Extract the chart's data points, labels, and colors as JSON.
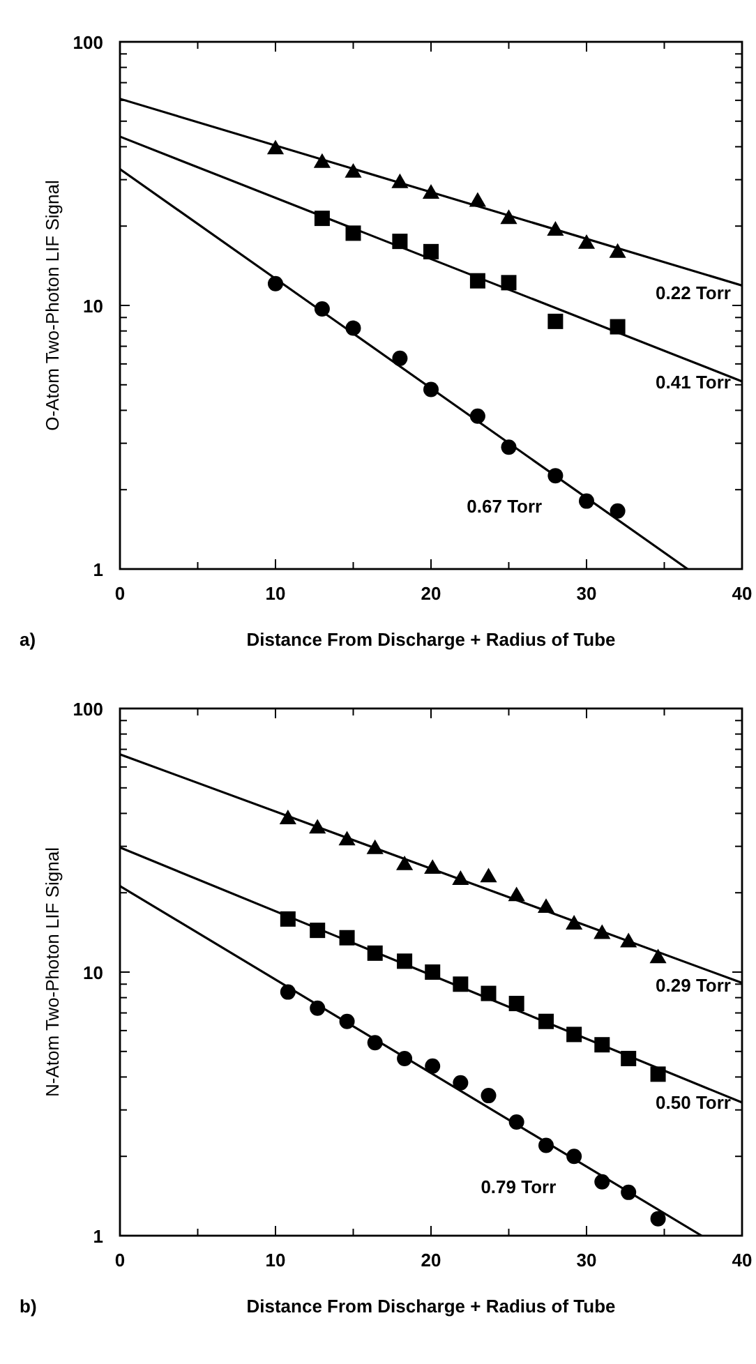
{
  "chart_data": [
    {
      "type": "scatter",
      "xlabel": "Distance From Discharge + Radius of Tube",
      "ylabel": "O-Atom Two-Photon LIF Signal",
      "log": "y",
      "xlim": [
        0,
        40
      ],
      "ylim": [
        1,
        100
      ],
      "xticks": [
        0,
        {
          "value": 5,
          "label": null
        },
        10,
        {
          "value": 15,
          "label": null
        },
        20,
        {
          "value": 25,
          "label": null
        },
        30,
        {
          "value": 35,
          "label": null
        },
        40
      ],
      "yticks": [
        1,
        {
          "value": 2,
          "label": null
        },
        {
          "value": 3,
          "label": null
        },
        {
          "value": 4,
          "label": null
        },
        {
          "value": 5,
          "label": null
        },
        {
          "value": 6,
          "label": null
        },
        {
          "value": 7,
          "label": null
        },
        {
          "value": 8,
          "label": null
        },
        {
          "value": 9,
          "label": null
        },
        10,
        {
          "value": 20,
          "label": null
        },
        {
          "value": 30,
          "label": null
        },
        {
          "value": 40,
          "label": null
        },
        {
          "value": 50,
          "label": null
        },
        {
          "value": 60,
          "label": null
        },
        {
          "value": 70,
          "label": null
        },
        {
          "value": 80,
          "label": null
        },
        {
          "value": 90,
          "label": null
        },
        100
      ],
      "grid": false,
      "legend": "right",
      "series": [
        {
          "marker": "triangle",
          "color": "#000000",
          "x": [
            10,
            13,
            15,
            18,
            20,
            23,
            25,
            28,
            30,
            32
          ],
          "values": [
            39.5,
            35.1,
            32.2,
            29.4,
            26.8,
            25.0,
            21.5,
            19.4,
            17.3,
            16.0
          ]
        },
        {
          "marker": "square",
          "color": "#000000",
          "x": [
            13,
            15,
            18,
            20,
            23,
            25,
            28,
            32
          ],
          "values": [
            21.4,
            18.8,
            17.5,
            16.0,
            12.4,
            12.2,
            8.7,
            8.3
          ]
        },
        {
          "marker": "circle",
          "color": "#000000",
          "x": [
            10,
            13,
            15,
            18,
            20,
            23,
            25,
            28,
            30,
            32
          ],
          "values": [
            12.1,
            9.7,
            8.2,
            6.3,
            4.8,
            3.8,
            2.9,
            2.26,
            1.81,
            1.66
          ]
        },
        {
          "type": "line",
          "name": "0.22 Torr",
          "color": "#000000",
          "line_style": "solid",
          "x": [
            0,
            40
          ],
          "values": [
            60.8,
            11.9
          ]
        },
        {
          "type": "line",
          "name": "0.41 Torr",
          "color": "#000000",
          "line_style": "solid",
          "x": [
            0,
            40
          ],
          "values": [
            43.7,
            5.15
          ]
        },
        {
          "type": "line",
          "name": "0.67 Torr",
          "color": "#000000",
          "line_style": "solid",
          "x": [
            0,
            36.5
          ],
          "values": [
            32.9,
            1
          ]
        }
      ],
      "annotations": [
        "a)"
      ]
    },
    {
      "type": "scatter",
      "xlabel": "Distance From Discharge + Radius of Tube",
      "ylabel": "N-Atom Two-Photon LIF Signal",
      "log": "y",
      "xlim": [
        0,
        40
      ],
      "ylim": [
        1,
        100
      ],
      "xticks": [
        0,
        {
          "value": 5,
          "label": null
        },
        10,
        {
          "value": 15,
          "label": null
        },
        20,
        {
          "value": 25,
          "label": null
        },
        30,
        {
          "value": 35,
          "label": null
        },
        40
      ],
      "yticks": [
        1,
        {
          "value": 2,
          "label": null
        },
        {
          "value": 3,
          "label": null
        },
        {
          "value": 4,
          "label": null
        },
        {
          "value": 5,
          "label": null
        },
        {
          "value": 6,
          "label": null
        },
        {
          "value": 7,
          "label": null
        },
        {
          "value": 8,
          "label": null
        },
        {
          "value": 9,
          "label": null
        },
        10,
        {
          "value": 20,
          "label": null
        },
        {
          "value": 30,
          "label": null
        },
        {
          "value": 40,
          "label": null
        },
        {
          "value": 50,
          "label": null
        },
        {
          "value": 60,
          "label": null
        },
        {
          "value": 70,
          "label": null
        },
        {
          "value": 80,
          "label": null
        },
        {
          "value": 90,
          "label": null
        },
        100
      ],
      "grid": false,
      "legend": "right",
      "series": [
        {
          "marker": "triangle",
          "color": "#000000",
          "x": [
            10.8,
            12.7,
            14.6,
            16.4,
            18.3,
            20.1,
            21.9,
            23.7,
            25.5,
            27.4,
            29.2,
            31.0,
            32.7,
            34.6
          ],
          "values": [
            38.4,
            35.4,
            31.9,
            29.6,
            25.7,
            24.9,
            22.6,
            23.1,
            19.6,
            17.7,
            15.3,
            14.1,
            13.1,
            11.4
          ]
        },
        {
          "marker": "square",
          "color": "#000000",
          "x": [
            10.8,
            12.7,
            14.6,
            16.4,
            18.3,
            20.1,
            21.9,
            23.7,
            25.5,
            27.4,
            29.2,
            31.0,
            32.7,
            34.6
          ],
          "values": [
            15.9,
            14.4,
            13.5,
            11.8,
            11.0,
            10.0,
            9.0,
            8.3,
            7.6,
            6.5,
            5.8,
            5.3,
            4.7,
            4.1
          ]
        },
        {
          "marker": "circle",
          "color": "#000000",
          "x": [
            10.8,
            12.7,
            14.6,
            16.4,
            18.3,
            20.1,
            21.9,
            23.7,
            25.5,
            27.4,
            29.2,
            31.0,
            32.7,
            34.6
          ],
          "values": [
            8.4,
            7.3,
            6.5,
            5.4,
            4.7,
            4.4,
            3.8,
            3.4,
            2.7,
            2.2,
            2.0,
            1.6,
            1.46,
            1.16
          ]
        },
        {
          "type": "line",
          "name": "0.29 Torr",
          "color": "#000000",
          "line_style": "solid",
          "x": [
            0,
            40
          ],
          "values": [
            67,
            9.1
          ]
        },
        {
          "type": "line",
          "name": "0.50 Torr",
          "color": "#000000",
          "line_style": "solid",
          "x": [
            0,
            40
          ],
          "values": [
            29.7,
            3.2
          ]
        },
        {
          "type": "line",
          "name": "0.79 Torr",
          "color": "#000000",
          "line_style": "solid",
          "x": [
            0,
            37.4
          ],
          "values": [
            21.2,
            1
          ]
        }
      ],
      "annotations": [
        "b)"
      ]
    }
  ]
}
